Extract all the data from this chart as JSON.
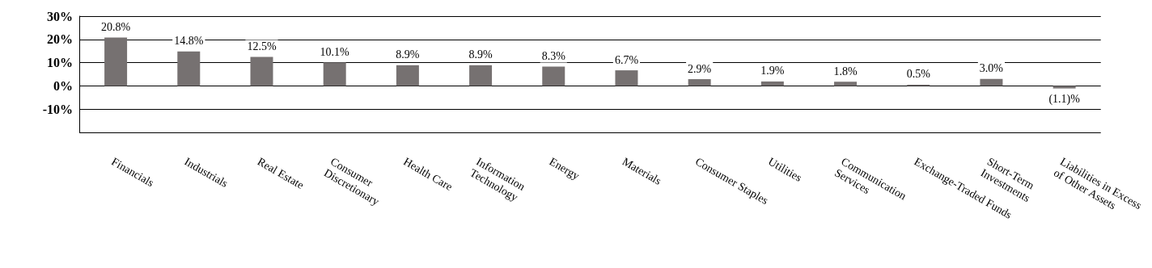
{
  "chart_data": {
    "type": "bar",
    "categories": [
      "Financials",
      "Industrials",
      "Real Estate",
      "Consumer\nDiscretionary",
      "Health Care",
      "Information\nTechnology",
      "Energy",
      "Materials",
      "Consumer Staples",
      "Utilities",
      "Communication\nServices",
      "Exchange-Traded Funds",
      "Short-Term\nInvestments",
      "Liabilities in Excess\nof Other Assets"
    ],
    "values": [
      20.8,
      14.8,
      12.5,
      10.1,
      8.9,
      8.9,
      8.3,
      6.7,
      2.9,
      1.9,
      1.8,
      0.5,
      3.0,
      -1.1
    ],
    "value_labels": [
      "20.8%",
      "14.8%",
      "12.5%",
      "10.1%",
      "8.9%",
      "8.9%",
      "8.3%",
      "6.7%",
      "2.9%",
      "1.9%",
      "1.8%",
      "0.5%",
      "3.0%",
      "(1.1)%"
    ],
    "color": "#767171",
    "ylim": [
      -20,
      30
    ],
    "yticks": [
      {
        "value": -20,
        "label": null
      },
      {
        "value": -10,
        "label": "-10%"
      },
      {
        "value": 0,
        "label": "0%"
      },
      {
        "value": 10,
        "label": "10%"
      },
      {
        "value": 20,
        "label": "20%"
      },
      {
        "value": 30,
        "label": "30%"
      }
    ],
    "grid": "y"
  }
}
